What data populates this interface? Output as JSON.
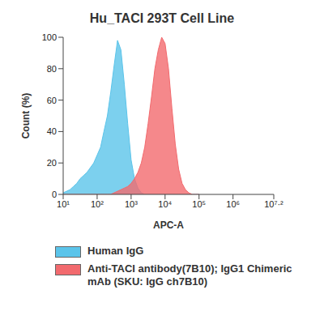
{
  "chart_data": {
    "type": "area",
    "title": "Hu_TACI 293T Cell Line",
    "x_label": "APC-A",
    "y_label": "Count (%)",
    "log": "x",
    "grid": false,
    "legend": "bottom",
    "x": [
      10,
      12.6,
      15.8,
      20,
      25.1,
      31.6,
      39.8,
      50.1,
      63.1,
      79.4,
      100,
      126,
      158,
      200,
      251,
      316,
      398,
      501,
      631,
      794,
      1000,
      1259,
      1585,
      1995,
      2512,
      3162,
      3981,
      5012,
      6310,
      7943,
      10000,
      12589,
      15849,
      19953,
      25119,
      31623,
      39811,
      50119,
      63096,
      79433,
      100000
    ],
    "xlim": [
      10,
      15848932
    ],
    "xticks": [
      {
        "value": 10,
        "label": "10¹"
      },
      {
        "value": 100,
        "label": "10²"
      },
      {
        "value": 1000,
        "label": "10³"
      },
      {
        "value": 10000,
        "label": "10⁴"
      },
      {
        "value": 100000,
        "label": "10⁵"
      },
      {
        "value": 1000000,
        "label": "10⁶"
      },
      {
        "value": 15848932,
        "label": "10⁷·²"
      }
    ],
    "ylim": [
      0,
      100
    ],
    "yticks": [
      0,
      20,
      40,
      60,
      80,
      100
    ],
    "series": [
      {
        "name": "Human IgG",
        "color": "#5bc4ea",
        "values": [
          1,
          2,
          3,
          5,
          7,
          10,
          12,
          14,
          17,
          20,
          25,
          30,
          40,
          50,
          65,
          82,
          98,
          92,
          70,
          45,
          22,
          10,
          4,
          1,
          0,
          0,
          0,
          0,
          0,
          0,
          0,
          0,
          0,
          0,
          0,
          0,
          0,
          0,
          0,
          0,
          0
        ]
      },
      {
        "name": "Anti-TACI antibody(7B10); IgG1 Chimeric mAb (SKU: IgG ch7B10)",
        "color": "#f26a6e",
        "values": [
          0,
          0,
          0,
          0,
          0,
          0,
          0,
          0,
          0,
          0,
          0,
          0,
          0,
          0,
          0,
          1,
          2,
          3,
          4,
          5,
          7,
          10,
          14,
          20,
          30,
          45,
          62,
          80,
          92,
          100,
          96,
          80,
          55,
          32,
          16,
          7,
          3,
          1,
          0,
          0,
          0
        ]
      }
    ]
  }
}
